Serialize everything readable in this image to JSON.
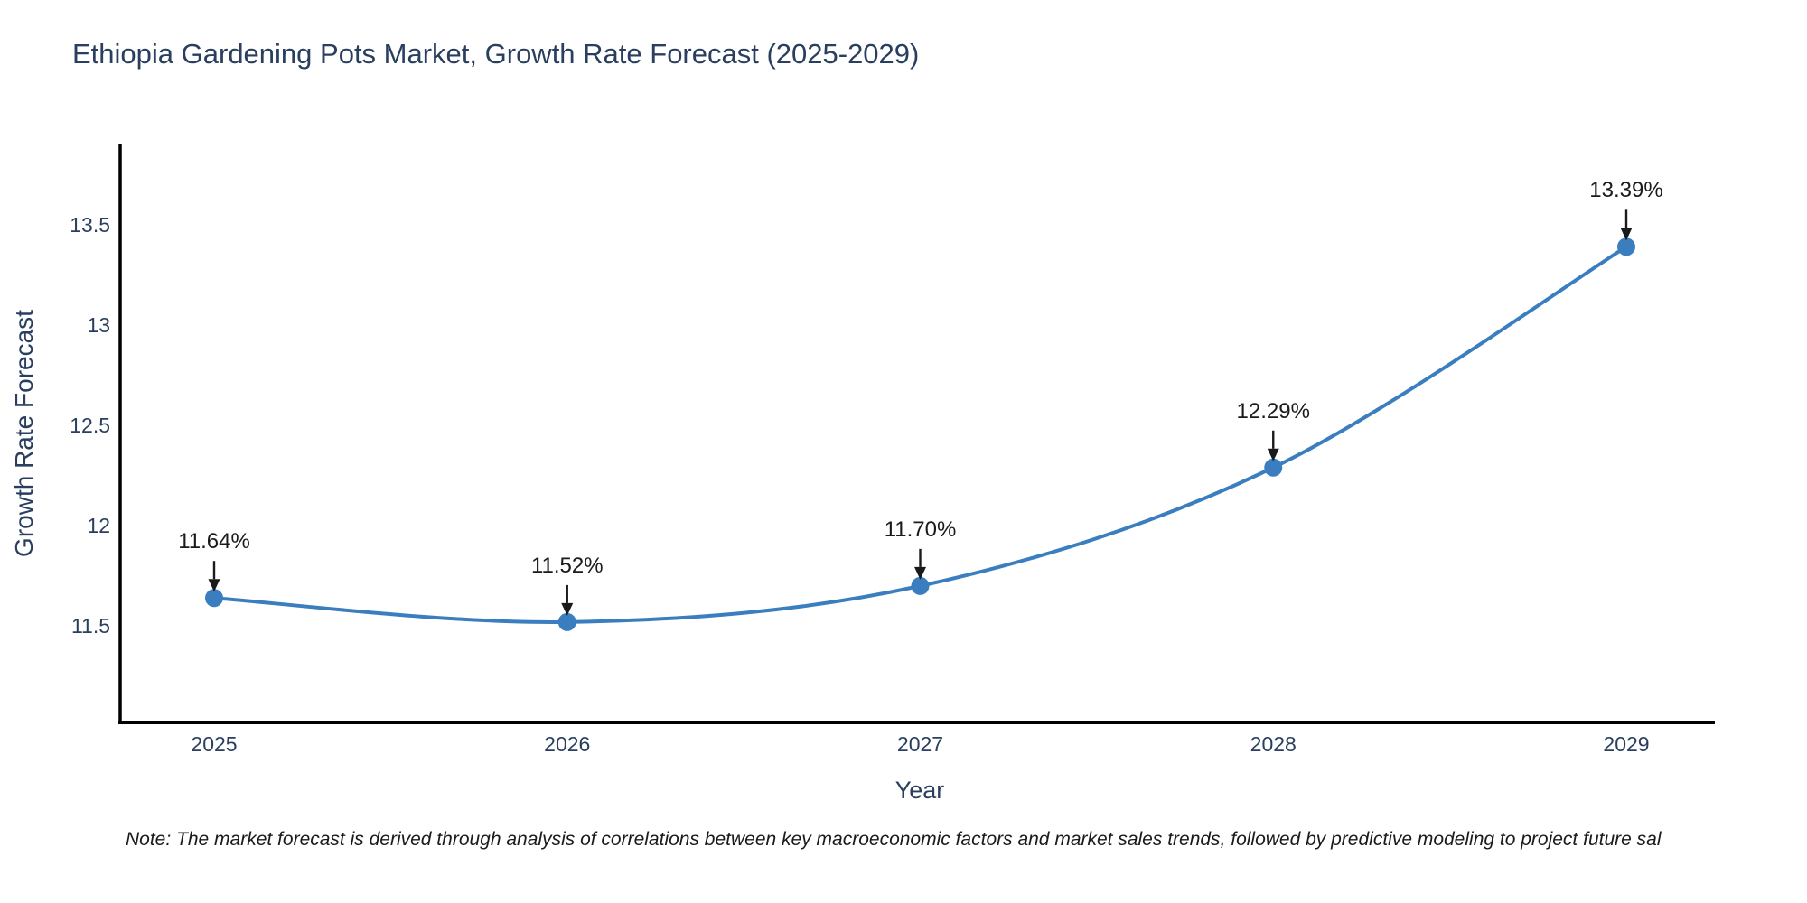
{
  "chart_data": {
    "type": "line",
    "title": "Ethiopia Gardening Pots Market, Growth Rate Forecast (2025-2029)",
    "xlabel": "Year",
    "ylabel": "Growth Rate Forecast",
    "categories": [
      "2025",
      "2026",
      "2027",
      "2028",
      "2029"
    ],
    "series": [
      {
        "name": "Growth Rate Forecast",
        "values": [
          11.64,
          11.52,
          11.7,
          12.29,
          13.39
        ],
        "point_labels": [
          "11.64%",
          "11.52%",
          "11.70%",
          "12.29%",
          "13.39%"
        ]
      }
    ],
    "yticks": [
      11.5,
      12,
      12.5,
      13,
      13.5
    ],
    "ytick_labels": [
      "11.5",
      "12",
      "12.5",
      "13",
      "13.5"
    ],
    "ylim": [
      11.02,
      13.9
    ],
    "grid": false,
    "legend_position": "none",
    "line_shape": "spline",
    "annotation_arrows": true,
    "colors": {
      "line": "#3a7ebf",
      "marker": "#3a7ebf",
      "axis": "#000000",
      "title_text": "#2a3f5f",
      "tick_text": "#2a3f5f",
      "annotation_text": "#1a1a1a",
      "background": "#ffffff"
    },
    "note": "Note: The market forecast is derived through analysis of correlations between key macroeconomic factors and market sales trends, followed by predictive modeling to project future sal"
  }
}
